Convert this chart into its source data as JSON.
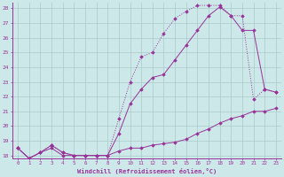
{
  "xlabel": "Windchill (Refroidissement éolien,°C)",
  "bg_color": "#cce8e8",
  "grid_color": "#aacccc",
  "line_color": "#993399",
  "xlim": [
    -0.5,
    23.5
  ],
  "ylim": [
    17.8,
    28.4
  ],
  "yticks": [
    18,
    19,
    20,
    21,
    22,
    23,
    24,
    25,
    26,
    27,
    28
  ],
  "xticks": [
    0,
    1,
    2,
    3,
    4,
    5,
    6,
    7,
    8,
    9,
    10,
    11,
    12,
    13,
    14,
    15,
    16,
    17,
    18,
    19,
    20,
    21,
    22,
    23
  ],
  "line1_x": [
    0,
    1,
    2,
    3,
    4,
    5,
    6,
    7,
    8,
    9,
    10,
    11,
    12,
    13,
    14,
    15,
    16,
    17,
    18,
    19,
    20,
    21,
    22,
    23
  ],
  "line1_y": [
    18.5,
    17.8,
    18.2,
    18.5,
    18.0,
    18.0,
    18.0,
    18.0,
    18.0,
    18.3,
    18.5,
    18.5,
    18.7,
    18.8,
    18.9,
    19.1,
    19.5,
    19.8,
    20.2,
    20.5,
    20.7,
    21.0,
    21.0,
    21.2
  ],
  "line2_x": [
    0,
    1,
    2,
    3,
    4,
    5,
    6,
    7,
    8,
    9,
    10,
    11,
    12,
    13,
    14,
    15,
    16,
    17,
    18,
    19,
    20,
    21,
    22,
    23
  ],
  "line2_y": [
    18.5,
    17.8,
    18.2,
    18.7,
    18.2,
    18.0,
    18.0,
    18.0,
    18.0,
    19.5,
    21.5,
    22.5,
    23.3,
    23.5,
    24.5,
    25.5,
    26.5,
    27.5,
    28.1,
    27.5,
    26.5,
    26.5,
    22.5,
    22.3
  ],
  "line3_x": [
    0,
    1,
    2,
    3,
    4,
    5,
    6,
    7,
    8,
    9,
    10,
    11,
    12,
    13,
    14,
    15,
    16,
    17,
    18,
    19,
    20,
    21,
    22,
    23
  ],
  "line3_y": [
    18.5,
    17.8,
    18.2,
    18.7,
    18.2,
    18.0,
    18.0,
    18.0,
    18.0,
    20.5,
    23.0,
    24.7,
    25.0,
    26.3,
    27.3,
    27.8,
    28.2,
    28.2,
    28.2,
    27.5,
    27.5,
    21.8,
    22.5,
    22.3
  ]
}
